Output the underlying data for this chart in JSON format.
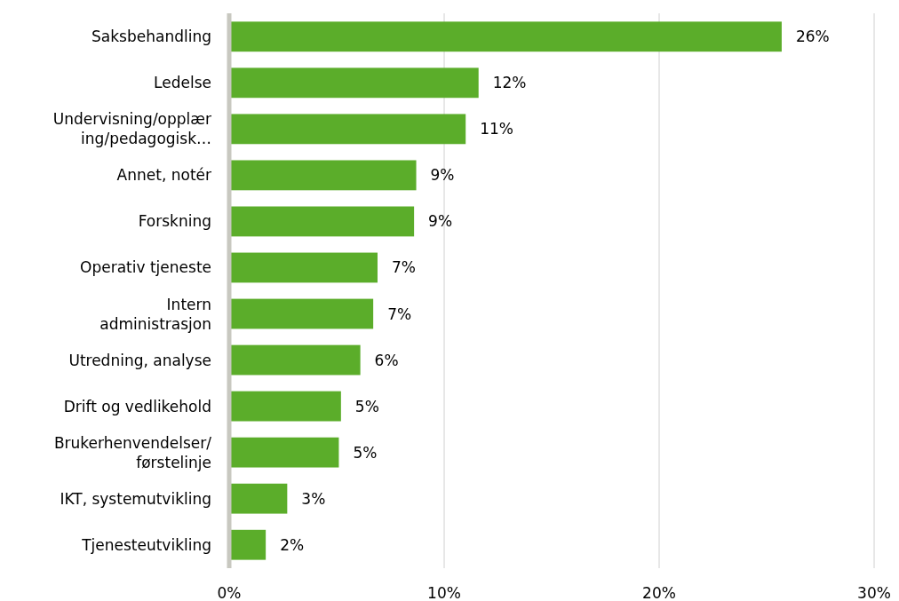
{
  "chart_data": {
    "type": "bar",
    "orientation": "horizontal",
    "categories": [
      "Saksbehandling",
      "Ledelse",
      "Undervisning/opplær\ning/pedagogisk…",
      "Annet, notér",
      "Forskning",
      "Operativ tjeneste",
      "Intern\nadministrasjon",
      "Utredning, analyse",
      "Drift og vedlikehold",
      "Brukerhenvendelser/\nførstelinje",
      "IKT, systemutvikling",
      "Tjenesteutvikling"
    ],
    "values": [
      25.7,
      11.6,
      11.0,
      8.7,
      8.6,
      6.9,
      6.7,
      6.1,
      5.2,
      5.1,
      2.7,
      1.7
    ],
    "value_labels": [
      "26%",
      "12%",
      "11%",
      "9%",
      "9%",
      "7%",
      "7%",
      "6%",
      "5%",
      "5%",
      "3%",
      "2%"
    ],
    "color": "#5bad2a",
    "xlim": [
      0,
      30
    ],
    "xticks": [
      {
        "value": 0,
        "label": "0%"
      },
      {
        "value": 10,
        "label": "10%"
      },
      {
        "value": 20,
        "label": "20%"
      },
      {
        "value": 30,
        "label": "30%"
      }
    ],
    "grid": "x"
  }
}
